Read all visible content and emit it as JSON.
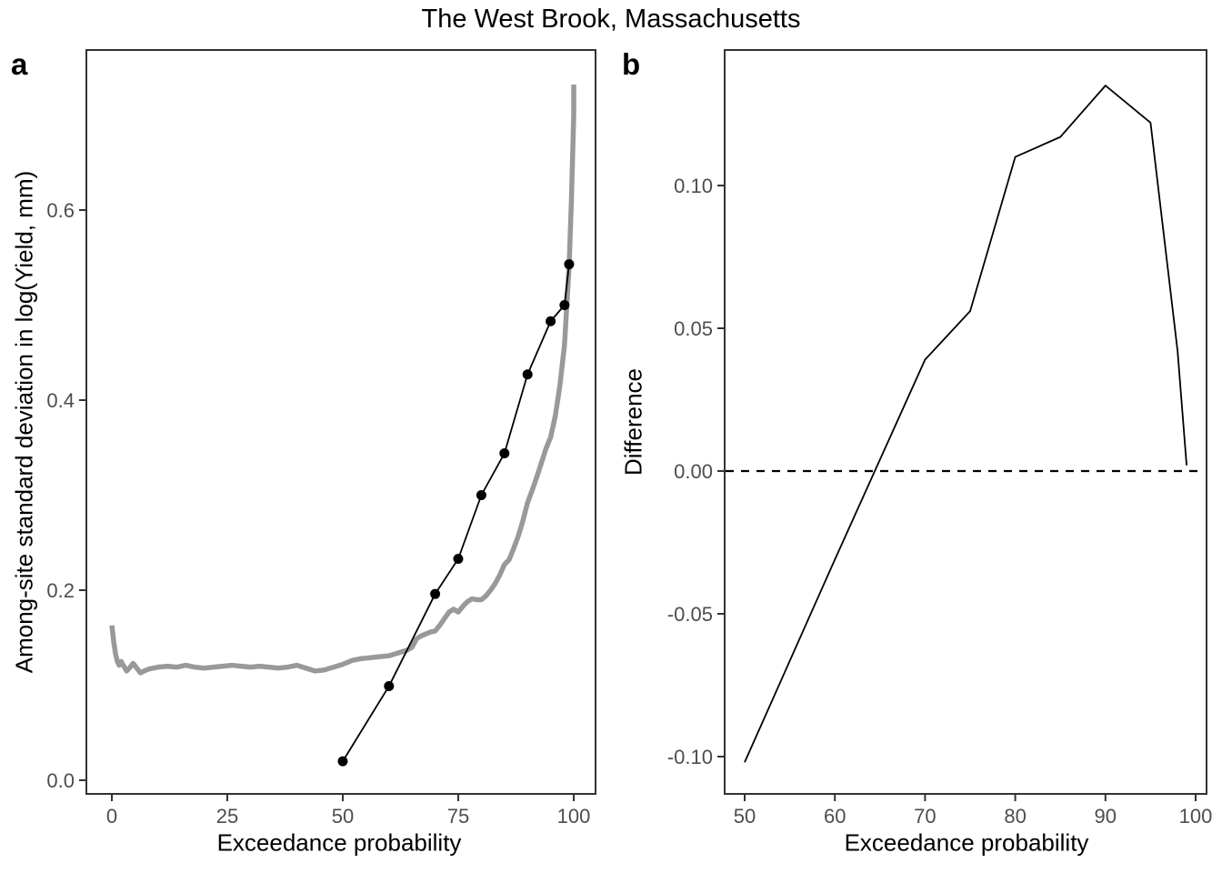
{
  "figure": {
    "title": "The West Brook, Massachusetts"
  },
  "chart_data": [
    {
      "panel": "a",
      "panel_letter": "a",
      "type": "line",
      "title": "",
      "xlabel": "Exceedance probability",
      "ylabel": "Among-site standard deviation in log(Yield, mm)",
      "xlim": [
        0,
        100
      ],
      "ylim": [
        0,
        0.6
      ],
      "grid": false,
      "legend": "none",
      "x_ticks": {
        "values": [
          0,
          25,
          50,
          75,
          100
        ],
        "labels": [
          "0",
          "25",
          "50",
          "75",
          "100"
        ]
      },
      "y_ticks": {
        "values": [
          0,
          0.2,
          0.4,
          0.6
        ],
        "labels": [
          "0.0",
          "0.2",
          "0.4",
          "0.6"
        ]
      },
      "series": [
        {
          "name": "continuous-sd-curve-gray",
          "color": "#999999",
          "width": 5.5,
          "markers": false,
          "x": [
            0,
            0.4,
            0.8,
            1.2,
            1.6,
            2.0,
            2.6,
            3.2,
            3.8,
            4.6,
            5.4,
            6.2,
            7.0,
            8,
            9,
            10,
            12,
            14,
            16,
            18,
            20,
            22,
            24,
            26,
            28,
            30,
            32,
            34,
            36,
            38,
            40,
            42,
            44,
            46,
            48,
            50,
            52,
            54,
            56,
            58,
            60,
            62,
            64,
            65,
            66,
            67,
            68,
            69,
            70,
            71,
            72,
            73,
            74,
            75,
            76,
            77,
            78,
            79,
            80,
            81,
            82,
            83,
            84,
            85,
            86,
            87,
            88,
            89,
            90,
            91,
            92,
            93,
            94,
            95,
            96,
            97,
            98,
            99,
            99.5,
            100,
            100
          ],
          "y": [
            0.163,
            0.146,
            0.133,
            0.125,
            0.121,
            0.125,
            0.12,
            0.115,
            0.118,
            0.123,
            0.118,
            0.113,
            0.115,
            0.117,
            0.118,
            0.119,
            0.12,
            0.119,
            0.121,
            0.119,
            0.118,
            0.119,
            0.12,
            0.121,
            0.12,
            0.119,
            0.12,
            0.119,
            0.118,
            0.119,
            0.121,
            0.118,
            0.115,
            0.116,
            0.119,
            0.122,
            0.126,
            0.128,
            0.129,
            0.13,
            0.131,
            0.134,
            0.137,
            0.14,
            0.149,
            0.152,
            0.154,
            0.156,
            0.157,
            0.163,
            0.17,
            0.177,
            0.18,
            0.177,
            0.183,
            0.188,
            0.191,
            0.19,
            0.19,
            0.194,
            0.2,
            0.207,
            0.216,
            0.227,
            0.232,
            0.244,
            0.257,
            0.273,
            0.292,
            0.305,
            0.319,
            0.334,
            0.349,
            0.361,
            0.383,
            0.415,
            0.458,
            0.541,
            0.61,
            0.7,
            0.732
          ]
        },
        {
          "name": "quantile-sd-points-black",
          "color": "#000000",
          "width": 1.8,
          "markers": true,
          "x": [
            50,
            60,
            70,
            75,
            80,
            85,
            90,
            95,
            98,
            99
          ],
          "y": [
            0.02,
            0.099,
            0.196,
            0.233,
            0.3,
            0.344,
            0.427,
            0.483,
            0.5,
            0.543
          ]
        }
      ]
    },
    {
      "panel": "b",
      "panel_letter": "b",
      "type": "line",
      "title": "",
      "xlabel": "Exceedance probability",
      "ylabel": "Difference",
      "xlim": [
        50,
        100
      ],
      "ylim": [
        -0.1,
        0.1
      ],
      "grid": false,
      "legend": "none",
      "zero_line": 0,
      "x_ticks": {
        "values": [
          50,
          60,
          70,
          80,
          90,
          100
        ],
        "labels": [
          "50",
          "60",
          "70",
          "80",
          "90",
          "100"
        ]
      },
      "y_ticks": {
        "values": [
          -0.1,
          -0.05,
          0,
          0.05,
          0.1
        ],
        "labels": [
          "-0.10",
          "-0.05",
          "0.00",
          "0.05",
          "0.10"
        ]
      },
      "series": [
        {
          "name": "difference-line-black",
          "color": "#000000",
          "width": 1.8,
          "markers": false,
          "x": [
            50,
            60,
            70,
            75,
            80,
            85,
            90,
            95,
            98,
            99
          ],
          "y": [
            -0.102,
            -0.031,
            0.039,
            0.056,
            0.11,
            0.117,
            0.135,
            0.122,
            0.042,
            0.002
          ]
        }
      ]
    }
  ],
  "layout": {
    "colors": {
      "border": "#333333",
      "tick_text": "#4d4d4d",
      "background": "#ffffff"
    },
    "panels": {
      "a": {
        "plot": [
          95,
          55,
          560,
          818
        ],
        "x_range": [
          123,
          631
        ],
        "y_range": [
          858,
          231
        ]
      },
      "b": {
        "plot": [
          797,
          55,
          530,
          818
        ],
        "x_range": [
          819,
          1315
        ],
        "y_range": [
          832,
          204
        ]
      }
    }
  }
}
